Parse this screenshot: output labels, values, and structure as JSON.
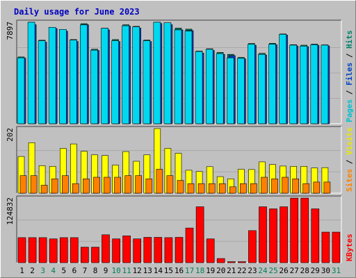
{
  "chart_data": {
    "type": "bar",
    "title": "Daily usage for June 2023",
    "x": [
      1,
      2,
      3,
      4,
      5,
      6,
      7,
      8,
      9,
      10,
      11,
      12,
      13,
      14,
      15,
      16,
      17,
      18,
      19,
      20,
      21,
      22,
      23,
      24,
      25,
      26,
      27,
      28,
      29,
      30,
      31
    ],
    "weekend_days": [
      3,
      4,
      10,
      11,
      17,
      18,
      24,
      25,
      31
    ],
    "panels": [
      {
        "name": "top",
        "max_label": "7897",
        "ymax": 7897,
        "right_labels": [
          {
            "text": "Pages",
            "color": "#00c0d0"
          },
          {
            "text": "Files",
            "color": "#0040c0"
          },
          {
            "text": "Hits",
            "color": "#00806a"
          }
        ],
        "series": [
          {
            "name": "Hits",
            "color": "#00806a",
            "values": [
              5200,
              7897,
              6500,
              7500,
              7340,
              6550,
              7790,
              5800,
              7430,
              6550,
              7700,
              7580,
              6510,
              7897,
              7820,
              7440,
              7360,
              5650,
              5830,
              5550,
              5400,
              5160,
              6240,
              5480,
              6260,
              6990,
              6150,
              6110,
              6200,
              6140,
              null
            ]
          },
          {
            "name": "Files",
            "color": "#0040c0",
            "values": [
              5100,
              7700,
              6350,
              7400,
              7200,
              6400,
              7700,
              5700,
              7300,
              6400,
              7600,
              7450,
              6400,
              7800,
              7700,
              7300,
              7250,
              5500,
              5700,
              5400,
              5300,
              5050,
              6100,
              5350,
              6150,
              6900,
              6050,
              6000,
              6100,
              6050,
              null
            ]
          },
          {
            "name": "Pages",
            "color": "#00d8f0",
            "values": [
              5130,
              7897,
              6460,
              7500,
              7340,
              6510,
              7690,
              5720,
              7430,
              6460,
              7620,
              7540,
              6460,
              7897,
              7860,
              7300,
              7210,
              5620,
              5800,
              5460,
              5130,
              5090,
              6190,
              5390,
              6190,
              6960,
              6120,
              6040,
              6150,
              6120,
              null
            ]
          }
        ]
      },
      {
        "name": "middle",
        "max_label": "202",
        "ymax": 202,
        "right_labels": [
          {
            "text": "Sites",
            "color": "#ff8000"
          },
          {
            "text": "Visits",
            "color": "#e8e800"
          }
        ],
        "series": [
          {
            "name": "Visits",
            "color": "#ffff00",
            "values": [
              115,
              158,
              86,
              84,
              140,
              154,
              131,
              120,
              118,
              88,
              130,
              100,
              120,
              202,
              140,
              125,
              72,
              68,
              83,
              52,
              45,
              75,
              74,
              98,
              90,
              85,
              84,
              84,
              79,
              80,
              null
            ]
          },
          {
            "name": "Sites",
            "color": "#ff8000",
            "values": [
              55,
              55,
              25,
              45,
              55,
              30,
              45,
              50,
              50,
              50,
              55,
              55,
              45,
              75,
              55,
              40,
              30,
              30,
              30,
              30,
              20,
              30,
              30,
              50,
              45,
              50,
              45,
              30,
              35,
              35,
              null
            ]
          }
        ]
      },
      {
        "name": "bottom",
        "max_label": "124832",
        "ymax": 124832,
        "right_labels": [
          {
            "text": "KBytes",
            "color": "#ff0000"
          }
        ],
        "series": [
          {
            "name": "KBytes",
            "color": "#ff0000",
            "values": [
              48500,
              48500,
              48500,
              46000,
              48500,
              48500,
              30000,
              30000,
              54000,
              46000,
              52000,
              46000,
              49000,
              49000,
              48500,
              49000,
              67000,
              108000,
              46000,
              8000,
              2000,
              2000,
              62000,
              108000,
              104000,
              108000,
              124832,
              124832,
              104000,
              59000,
              59000
            ]
          }
        ]
      }
    ]
  }
}
